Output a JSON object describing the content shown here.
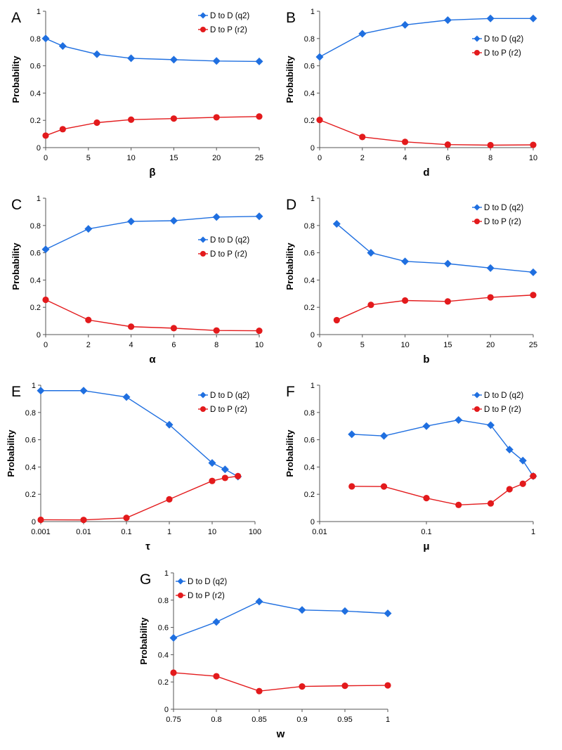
{
  "colors": {
    "blue": "#1f6fe0",
    "red": "#e31a1c",
    "axis": "#555555"
  },
  "chart_data": [
    {
      "type": "line",
      "panel": "A",
      "xlabel": "β",
      "ylabel": "Probability",
      "xscale": "linear",
      "xlim": [
        0,
        25
      ],
      "ylim": [
        0,
        1
      ],
      "xticks": [
        0,
        5,
        10,
        15,
        20,
        25
      ],
      "xtick_labels": [
        "0",
        "5",
        "10",
        "15",
        "20",
        "25"
      ],
      "yticks": [
        0,
        0.2,
        0.4,
        0.6,
        0.8,
        1
      ],
      "ytick_labels": [
        "0",
        "0.2",
        "0.4",
        "0.6",
        "0.8",
        "1"
      ],
      "legend": "top-right",
      "series": [
        {
          "name": "D to D (q2)",
          "marker": "diamond",
          "color": "#1f6fe0",
          "x": [
            0,
            2,
            6,
            10,
            15,
            20,
            25
          ],
          "y": [
            0.8,
            0.745,
            0.685,
            0.655,
            0.645,
            0.635,
            0.632
          ]
        },
        {
          "name": "D to P (r2)",
          "marker": "circle",
          "color": "#e31a1c",
          "x": [
            0,
            2,
            6,
            10,
            15,
            20,
            25
          ],
          "y": [
            0.088,
            0.135,
            0.183,
            0.205,
            0.213,
            0.222,
            0.228
          ]
        }
      ]
    },
    {
      "type": "line",
      "panel": "B",
      "xlabel": "d",
      "ylabel": "Probability",
      "xscale": "linear",
      "xlim": [
        0,
        10
      ],
      "ylim": [
        0,
        1
      ],
      "xticks": [
        0,
        2,
        4,
        6,
        8,
        10
      ],
      "xtick_labels": [
        "0",
        "2",
        "4",
        "6",
        "8",
        "10"
      ],
      "yticks": [
        0,
        0.2,
        0.4,
        0.6,
        0.8,
        1
      ],
      "ytick_labels": [
        "0",
        "0.2",
        "0.4",
        "0.6",
        "0.8",
        "1"
      ],
      "legend": "right",
      "series": [
        {
          "name": "D to D (q2)",
          "marker": "diamond",
          "color": "#1f6fe0",
          "x": [
            0,
            2,
            4,
            6,
            8,
            10
          ],
          "y": [
            0.665,
            0.835,
            0.9,
            0.935,
            0.947,
            0.947
          ]
        },
        {
          "name": "D to P (r2)",
          "marker": "circle",
          "color": "#e31a1c",
          "x": [
            0,
            2,
            4,
            6,
            8,
            10
          ],
          "y": [
            0.203,
            0.078,
            0.042,
            0.022,
            0.018,
            0.02
          ]
        }
      ]
    },
    {
      "type": "line",
      "panel": "C",
      "xlabel": "α",
      "ylabel": "Probability",
      "xscale": "linear",
      "xlim": [
        0,
        10
      ],
      "ylim": [
        0,
        1
      ],
      "xticks": [
        0,
        2,
        4,
        6,
        8,
        10
      ],
      "xtick_labels": [
        "0",
        "2",
        "4",
        "6",
        "8",
        "10"
      ],
      "yticks": [
        0,
        0.2,
        0.4,
        0.6,
        0.8,
        1
      ],
      "ytick_labels": [
        "0",
        "0.2",
        "0.4",
        "0.6",
        "0.8",
        "1"
      ],
      "legend": "right",
      "series": [
        {
          "name": "D to D (q2)",
          "marker": "diamond",
          "color": "#1f6fe0",
          "x": [
            0,
            2,
            4,
            6,
            8,
            10
          ],
          "y": [
            0.625,
            0.775,
            0.83,
            0.835,
            0.862,
            0.867
          ]
        },
        {
          "name": "D to P (r2)",
          "marker": "circle",
          "color": "#e31a1c",
          "x": [
            0,
            2,
            4,
            6,
            8,
            10
          ],
          "y": [
            0.255,
            0.107,
            0.058,
            0.047,
            0.03,
            0.028
          ]
        }
      ]
    },
    {
      "type": "line",
      "panel": "D",
      "xlabel": "b",
      "ylabel": "Probability",
      "xscale": "linear",
      "xlim": [
        0,
        25
      ],
      "ylim": [
        0,
        1
      ],
      "xticks": [
        0,
        5,
        10,
        15,
        20,
        25
      ],
      "xtick_labels": [
        "0",
        "5",
        "10",
        "15",
        "20",
        "25"
      ],
      "yticks": [
        0,
        0.2,
        0.4,
        0.6,
        0.8,
        1
      ],
      "ytick_labels": [
        "0",
        "0.2",
        "0.4",
        "0.6",
        "0.8",
        "1"
      ],
      "legend": "top-right",
      "series": [
        {
          "name": "D to D (q2)",
          "marker": "diamond",
          "color": "#1f6fe0",
          "x": [
            2,
            6,
            10,
            15,
            20,
            25
          ],
          "y": [
            0.812,
            0.6,
            0.537,
            0.52,
            0.488,
            0.457
          ]
        },
        {
          "name": "D to P (r2)",
          "marker": "circle",
          "color": "#e31a1c",
          "x": [
            2,
            6,
            10,
            15,
            20,
            25
          ],
          "y": [
            0.106,
            0.218,
            0.25,
            0.243,
            0.273,
            0.29
          ]
        }
      ]
    },
    {
      "type": "line",
      "panel": "E",
      "xlabel": "τ",
      "ylabel": "Probability",
      "xscale": "log",
      "xlim": [
        0.001,
        100
      ],
      "ylim": [
        0,
        1
      ],
      "xticks": [
        0.001,
        0.01,
        0.1,
        1,
        10,
        100
      ],
      "xtick_labels": [
        "0.001",
        "0.01",
        "0.1",
        "1",
        "10",
        "100"
      ],
      "yticks": [
        0,
        0.2,
        0.4,
        0.6,
        0.8,
        1
      ],
      "ytick_labels": [
        "0",
        "0.2",
        "0.4",
        "0.6",
        "0.8",
        "1"
      ],
      "legend": "top-right",
      "series": [
        {
          "name": "D to D (q2)",
          "marker": "diamond",
          "color": "#1f6fe0",
          "x": [
            0.001,
            0.01,
            0.1,
            1,
            10,
            20,
            40
          ],
          "y": [
            0.96,
            0.96,
            0.913,
            0.71,
            0.43,
            0.383,
            0.33
          ]
        },
        {
          "name": "D to P (r2)",
          "marker": "circle",
          "color": "#e31a1c",
          "x": [
            0.001,
            0.01,
            0.1,
            1,
            10,
            20,
            40
          ],
          "y": [
            0.013,
            0.012,
            0.027,
            0.163,
            0.298,
            0.32,
            0.333
          ]
        }
      ]
    },
    {
      "type": "line",
      "panel": "F",
      "xlabel": "μ",
      "ylabel": "Probability",
      "xscale": "log",
      "xlim": [
        0.01,
        1
      ],
      "ylim": [
        0,
        1
      ],
      "xticks": [
        0.01,
        0.1,
        1
      ],
      "xtick_labels": [
        "0.01",
        "0.1",
        "1"
      ],
      "yticks": [
        0,
        0.2,
        0.4,
        0.6,
        0.8,
        1
      ],
      "ytick_labels": [
        "0",
        "0.2",
        "0.4",
        "0.6",
        "0.8",
        "1"
      ],
      "legend": "top-right",
      "series": [
        {
          "name": "D to D (q2)",
          "marker": "diamond",
          "color": "#1f6fe0",
          "x": [
            0.02,
            0.04,
            0.1,
            0.2,
            0.4,
            0.6,
            0.8,
            1
          ],
          "y": [
            0.64,
            0.628,
            0.7,
            0.745,
            0.707,
            0.528,
            0.447,
            0.333
          ]
        },
        {
          "name": "D to P (r2)",
          "marker": "circle",
          "color": "#e31a1c",
          "x": [
            0.02,
            0.04,
            0.1,
            0.2,
            0.4,
            0.6,
            0.8,
            1
          ],
          "y": [
            0.258,
            0.257,
            0.172,
            0.122,
            0.133,
            0.237,
            0.277,
            0.333
          ]
        }
      ]
    },
    {
      "type": "line",
      "panel": "G",
      "xlabel": "w",
      "ylabel": "Probability",
      "xscale": "linear",
      "xlim": [
        0.75,
        1
      ],
      "ylim": [
        0,
        1
      ],
      "xticks": [
        0.75,
        0.8,
        0.85,
        0.9,
        0.95,
        1
      ],
      "xtick_labels": [
        "0.75",
        "0.8",
        "0.85",
        "0.9",
        "0.95",
        "1"
      ],
      "yticks": [
        0,
        0.2,
        0.4,
        0.6,
        0.8,
        1
      ],
      "ytick_labels": [
        "0",
        "0.2",
        "0.4",
        "0.6",
        "0.8",
        "1"
      ],
      "legend": "top-left",
      "series": [
        {
          "name": "D to D (q2)",
          "marker": "diamond",
          "color": "#1f6fe0",
          "x": [
            0.75,
            0.8,
            0.85,
            0.9,
            0.95,
            1
          ],
          "y": [
            0.523,
            0.64,
            0.79,
            0.728,
            0.72,
            0.703
          ]
        },
        {
          "name": "D to P (r2)",
          "marker": "circle",
          "color": "#e31a1c",
          "x": [
            0.75,
            0.8,
            0.85,
            0.9,
            0.95,
            1
          ],
          "y": [
            0.268,
            0.242,
            0.133,
            0.167,
            0.172,
            0.175
          ]
        }
      ]
    }
  ]
}
